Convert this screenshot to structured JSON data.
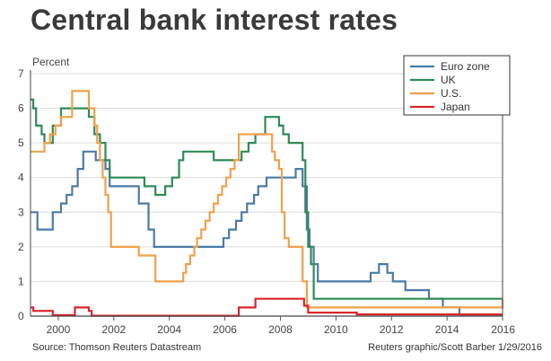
{
  "page": {
    "title": "Central bank interest rates",
    "source": "Source: Thomson Reuters Datastream",
    "credit": "Reuters graphic/Scott Barber 1/29/2016"
  },
  "chart_data": {
    "type": "line",
    "title": "Central bank interest rates",
    "xlabel": "",
    "ylabel": "Percent",
    "xlim": [
      1999,
      2016
    ],
    "ylim": [
      0,
      7
    ],
    "x_ticks": [
      2000,
      2002,
      2004,
      2006,
      2008,
      2010,
      2012,
      2014,
      2016
    ],
    "y_ticks": [
      0,
      1,
      2,
      3,
      4,
      5,
      6,
      7
    ],
    "grid": "horizontal",
    "legend_position": "top-right",
    "series": [
      {
        "name": "Euro zone",
        "color": "#4a7aa7",
        "x": [
          1999,
          1999.25,
          1999.8,
          2000.1,
          2000.3,
          2000.5,
          2000.7,
          2000.9,
          2001.35,
          2001.7,
          2001.85,
          2002.9,
          2003.25,
          2003.45,
          2005.95,
          2006.15,
          2006.4,
          2006.6,
          2006.8,
          2007.05,
          2007.2,
          2007.5,
          2008.55,
          2008.8,
          2008.95,
          2009.05,
          2009.2,
          2009.35,
          2011.25,
          2011.55,
          2011.85,
          2012.05,
          2012.5,
          2013.35,
          2013.85,
          2014.45,
          2016
        ],
        "values": [
          3.0,
          2.5,
          3.0,
          3.25,
          3.5,
          3.75,
          4.25,
          4.75,
          4.5,
          4.25,
          3.75,
          3.25,
          2.5,
          2.0,
          2.25,
          2.5,
          2.75,
          3.0,
          3.25,
          3.5,
          3.75,
          4.0,
          4.25,
          3.75,
          2.5,
          2.0,
          1.5,
          1.0,
          1.25,
          1.5,
          1.25,
          1.0,
          0.75,
          0.5,
          0.25,
          0.05,
          0.05
        ]
      },
      {
        "name": "UK",
        "color": "#2e8b57",
        "x": [
          1999,
          1999.1,
          1999.2,
          1999.4,
          1999.5,
          1999.8,
          2000.1,
          2001.1,
          2001.3,
          2001.5,
          2001.7,
          2001.85,
          2003.1,
          2003.5,
          2003.85,
          2004.1,
          2004.35,
          2004.5,
          2004.6,
          2005.6,
          2006.6,
          2006.85,
          2007.1,
          2007.45,
          2007.95,
          2008.1,
          2008.3,
          2008.8,
          2008.9,
          2009.0,
          2009.1,
          2009.2,
          2016
        ],
        "values": [
          6.25,
          6.0,
          5.5,
          5.25,
          5.0,
          5.5,
          6.0,
          5.75,
          5.25,
          5.0,
          4.5,
          4.0,
          3.75,
          3.5,
          3.75,
          4.0,
          4.5,
          4.75,
          4.75,
          4.5,
          4.75,
          5.0,
          5.25,
          5.75,
          5.5,
          5.25,
          5.0,
          4.5,
          3.0,
          2.0,
          1.5,
          0.5,
          0.5
        ]
      },
      {
        "name": "U.S.",
        "color": "#f0a04b",
        "x": [
          1999,
          1999.5,
          1999.7,
          1999.9,
          2000.1,
          2000.5,
          2001.1,
          2001.3,
          2001.4,
          2001.5,
          2001.6,
          2001.7,
          2001.8,
          2001.9,
          2002.9,
          2003.5,
          2004.5,
          2004.6,
          2004.75,
          2004.9,
          2005.0,
          2005.15,
          2005.3,
          2005.45,
          2005.6,
          2005.75,
          2005.9,
          2006.05,
          2006.2,
          2006.35,
          2006.5,
          2007.7,
          2007.8,
          2007.95,
          2008.05,
          2008.15,
          2008.3,
          2008.8,
          2008.95,
          2016
        ],
        "values": [
          4.75,
          5.0,
          5.25,
          5.5,
          5.75,
          6.5,
          6.0,
          5.5,
          5.0,
          4.5,
          4.0,
          3.5,
          3.0,
          2.0,
          1.75,
          1.0,
          1.25,
          1.5,
          1.75,
          2.0,
          2.25,
          2.5,
          2.75,
          3.0,
          3.25,
          3.5,
          3.75,
          4.0,
          4.25,
          4.5,
          5.25,
          4.75,
          4.5,
          4.25,
          3.0,
          2.25,
          2.0,
          1.0,
          0.25,
          0.5
        ]
      },
      {
        "name": "Japan",
        "color": "#d9262c",
        "x": [
          1999,
          1999.1,
          1999.8,
          2000.6,
          2001.1,
          2001.2,
          2006.5,
          2007.1,
          2008.85,
          2009.0,
          2010.75,
          2016
        ],
        "values": [
          0.25,
          0.15,
          0.03,
          0.25,
          0.15,
          0.01,
          0.25,
          0.5,
          0.3,
          0.1,
          0.05,
          0.05
        ]
      }
    ]
  }
}
